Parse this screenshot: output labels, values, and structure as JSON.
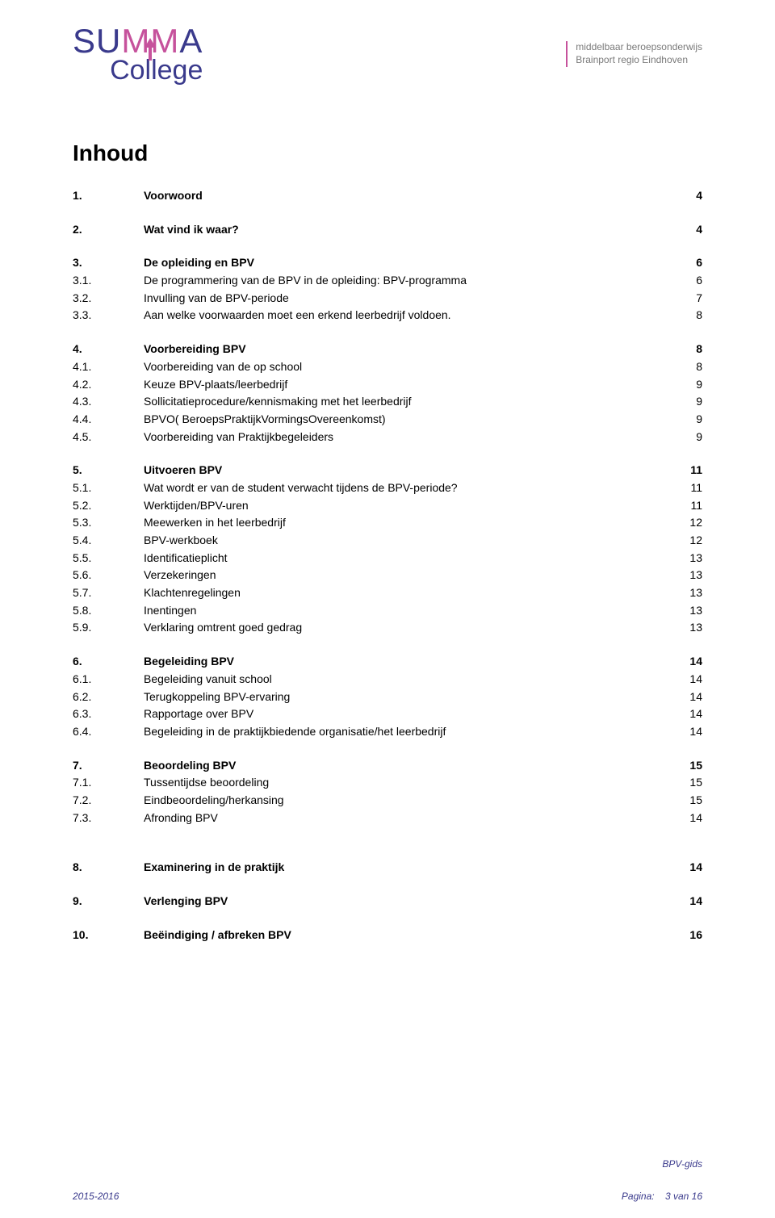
{
  "logo": {
    "line1_parts": [
      "S",
      "U",
      "M",
      "M",
      "A"
    ],
    "line2": "College"
  },
  "tagline": {
    "line1": "middelbaar beroepsonderwijs",
    "line2": "Brainport regio Eindhoven"
  },
  "title": "Inhoud",
  "colors": {
    "indigo": "#3a3a8c",
    "magenta": "#c6529c",
    "grey": "#7a7a7a"
  },
  "toc": [
    {
      "type": "section",
      "num": "1.",
      "title": "Voorwoord",
      "page": "4"
    },
    {
      "type": "gap"
    },
    {
      "type": "section",
      "num": "2.",
      "title": "Wat vind ik waar?",
      "page": "4"
    },
    {
      "type": "gap"
    },
    {
      "type": "section",
      "num": "3.",
      "title": "De opleiding en BPV",
      "page": "6"
    },
    {
      "type": "sub",
      "num": "3.1.",
      "title": "De programmering van de BPV in de opleiding: BPV-programma",
      "page": "6"
    },
    {
      "type": "sub",
      "num": "3.2.",
      "title": "Invulling van de BPV-periode",
      "page": "7"
    },
    {
      "type": "sub",
      "num": "3.3.",
      "title": "Aan welke voorwaarden moet een erkend leerbedrijf voldoen.",
      "page": "8"
    },
    {
      "type": "gap"
    },
    {
      "type": "section",
      "num": "4.",
      "title": "Voorbereiding BPV",
      "page": "8"
    },
    {
      "type": "sub",
      "num": "4.1.",
      "title": "Voorbereiding van de op school",
      "page": "8"
    },
    {
      "type": "sub",
      "num": "4.2.",
      "title": "Keuze BPV-plaats/leerbedrijf",
      "page": "9"
    },
    {
      "type": "sub",
      "num": "4.3.",
      "title": "Sollicitatieprocedure/kennismaking met het leerbedrijf",
      "page": "9"
    },
    {
      "type": "sub",
      "num": "4.4.",
      "title": "BPVO( BeroepsPraktijkVormingsOvereenkomst)",
      "page": "9"
    },
    {
      "type": "sub",
      "num": "4.5.",
      "title": "Voorbereiding van Praktijkbegeleiders",
      "page": "9"
    },
    {
      "type": "gap"
    },
    {
      "type": "section",
      "num": "5.",
      "title": "Uitvoeren BPV",
      "page": "11"
    },
    {
      "type": "sub",
      "num": "5.1.",
      "title": "Wat wordt er van de student verwacht tijdens de BPV-periode?",
      "page": "11"
    },
    {
      "type": "sub",
      "num": "5.2.",
      "title": "Werktijden/BPV-uren",
      "page": "11"
    },
    {
      "type": "sub",
      "num": "5.3.",
      "title": "Meewerken in het leerbedrijf",
      "page": "12"
    },
    {
      "type": "sub",
      "num": "5.4.",
      "title": "BPV-werkboek",
      "page": "12"
    },
    {
      "type": "sub",
      "num": "5.5.",
      "title": "Identificatieplicht",
      "page": "13"
    },
    {
      "type": "sub",
      "num": "5.6.",
      "title": "Verzekeringen",
      "page": "13"
    },
    {
      "type": "sub",
      "num": "5.7.",
      "title": "Klachtenregelingen",
      "page": "13"
    },
    {
      "type": "sub",
      "num": "5.8.",
      "title": "Inentingen",
      "page": "13"
    },
    {
      "type": "sub",
      "num": "5.9.",
      "title": "Verklaring omtrent goed gedrag",
      "page": "13"
    },
    {
      "type": "gap"
    },
    {
      "type": "section",
      "num": "6.",
      "title": "Begeleiding BPV",
      "page": "14"
    },
    {
      "type": "sub",
      "num": "6.1.",
      "title": "Begeleiding vanuit school",
      "page": "14"
    },
    {
      "type": "sub",
      "num": "6.2.",
      "title": "Terugkoppeling BPV-ervaring",
      "page": "14"
    },
    {
      "type": "sub",
      "num": "6.3.",
      "title": "Rapportage over BPV",
      "page": "14"
    },
    {
      "type": "sub",
      "num": "6.4.",
      "title": "Begeleiding in de praktijkbiedende organisatie/het leerbedrijf",
      "page": "14"
    },
    {
      "type": "gap"
    },
    {
      "type": "section",
      "num": "7.",
      "title": "Beoordeling BPV",
      "page": "15"
    },
    {
      "type": "sub",
      "num": "7.1.",
      "title": "Tussentijdse beoordeling",
      "page": "15"
    },
    {
      "type": "sub",
      "num": "7.2.",
      "title": "Eindbeoordeling/herkansing",
      "page": "15"
    },
    {
      "type": "sub",
      "num": "7.3.",
      "title": "Afronding BPV",
      "page": "14"
    },
    {
      "type": "gap"
    },
    {
      "type": "gap"
    },
    {
      "type": "section",
      "num": "8.",
      "title": "Examinering in de praktijk",
      "page": "14"
    },
    {
      "type": "gap"
    },
    {
      "type": "section",
      "num": "9.",
      "title": "Verlenging BPV",
      "page": "14"
    },
    {
      "type": "gap"
    },
    {
      "type": "section",
      "num": "10.",
      "title": "Beëindiging / afbreken BPV",
      "page": "16"
    }
  ],
  "footer": {
    "year": "2015-2016",
    "doc_label": "BPV-gids",
    "page_label": "Pagina:",
    "page_value": "3 van 16"
  }
}
